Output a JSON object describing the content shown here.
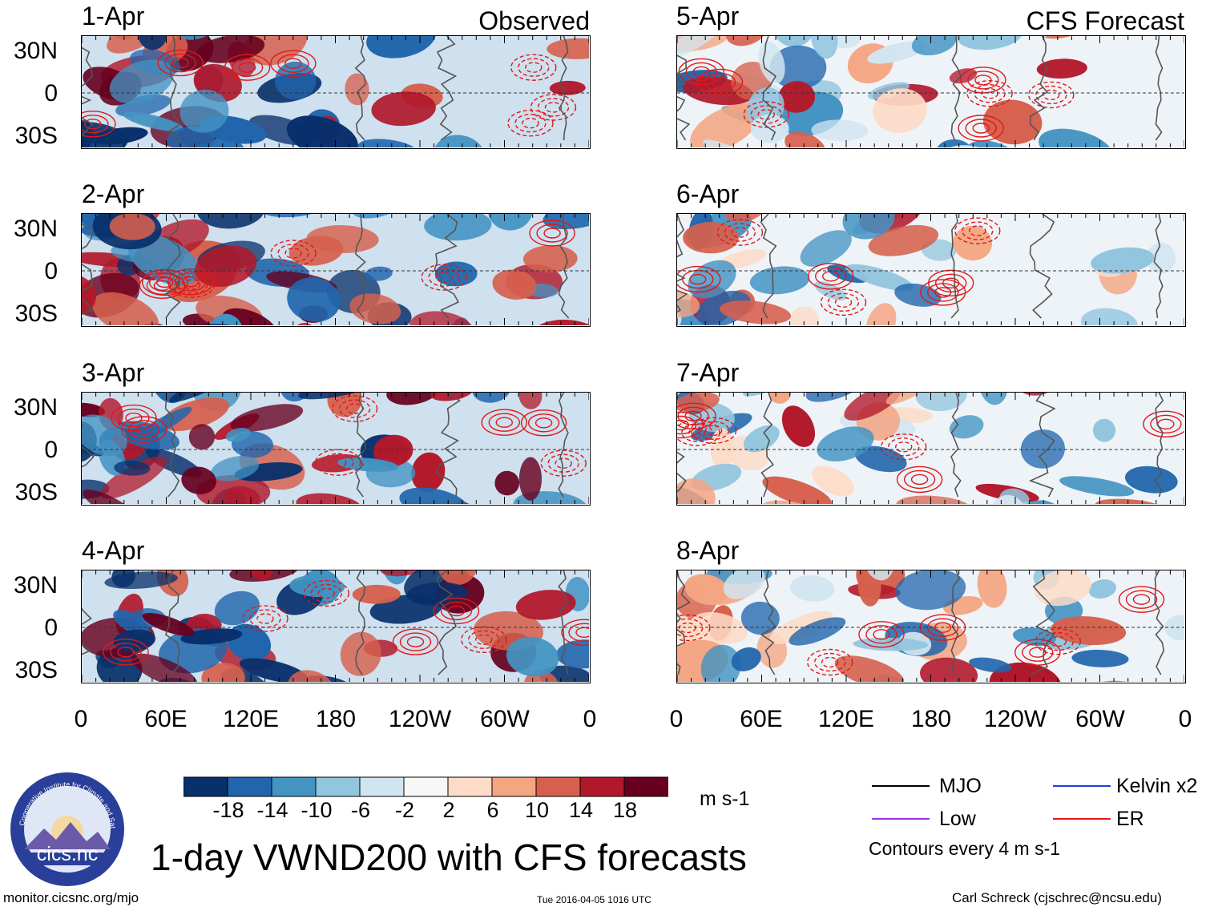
{
  "columns": {
    "left": {
      "title": "Observed"
    },
    "right": {
      "title": "CFS Forecast"
    }
  },
  "panels": {
    "left": [
      "1-Apr",
      "2-Apr",
      "3-Apr",
      "4-Apr"
    ],
    "right": [
      "5-Apr",
      "6-Apr",
      "7-Apr",
      "8-Apr"
    ]
  },
  "lat_labels": [
    "30N",
    "0",
    "30S"
  ],
  "lon_labels": [
    "0",
    "60E",
    "120E",
    "180",
    "120W",
    "60W",
    "0"
  ],
  "colorbar": {
    "colors": [
      "#08306b",
      "#2166ac",
      "#4393c3",
      "#92c5de",
      "#d1e5f0",
      "#f7f7f7",
      "#fddbc7",
      "#f4a582",
      "#d6604d",
      "#b2182b",
      "#67001f"
    ],
    "ticks": [
      "-18",
      "-14",
      "-10",
      "-6",
      "-2",
      "2",
      "6",
      "10",
      "14",
      "18"
    ],
    "units": "m s-1"
  },
  "legend": {
    "items": [
      {
        "label": "MJO",
        "color": "#000000"
      },
      {
        "label": "Kelvin x2",
        "color": "#1f3fd6"
      },
      {
        "label": "Low",
        "color": "#9b30e0"
      },
      {
        "label": "ER",
        "color": "#e01818"
      }
    ],
    "note": "Contours every 4 m s-1"
  },
  "logo": {
    "text": "cics.nc",
    "ring_text": "Cooperative Institute for Climate and Satellites"
  },
  "main_title": "1-day VWND200 with CFS forecasts",
  "footer": {
    "url": "monitor.cicsnc.org/mjo",
    "timestamp": "Tue 2016-04-05 1016 UTC",
    "author": "Carl Schreck (cjschrec@ncsu.edu)"
  }
}
